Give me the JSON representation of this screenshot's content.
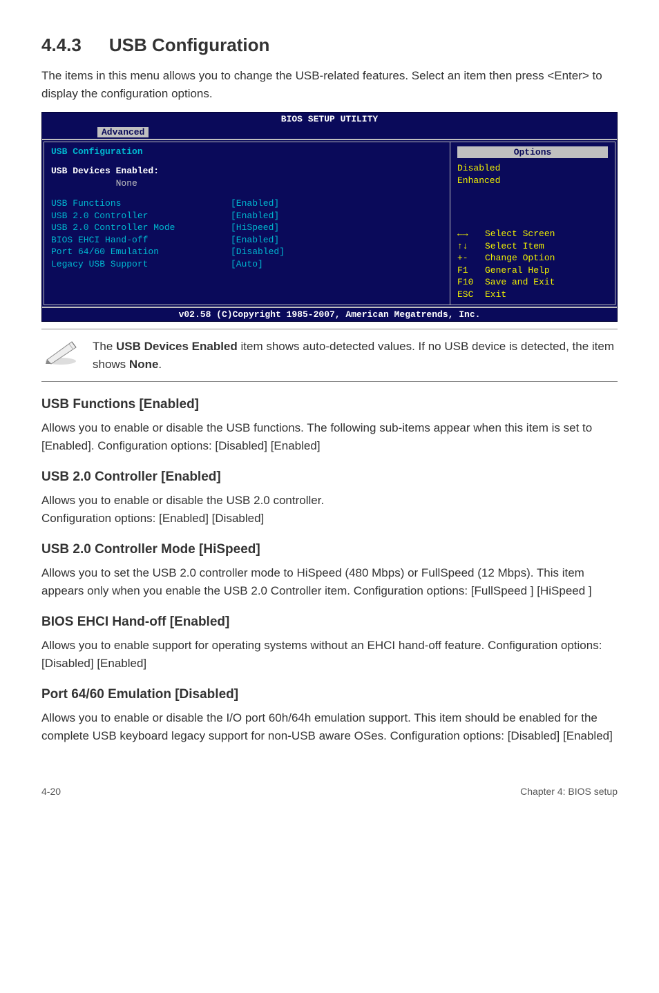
{
  "heading": {
    "number": "4.4.3",
    "title": "USB Configuration"
  },
  "intro": "The items in this menu allows you to change the USB-related features. Select an item then press <Enter> to display the configuration options.",
  "bios": {
    "title": "BIOS SETUP UTILITY",
    "tab": "Advanced",
    "config_label": "USB Configuration",
    "devices_label": "USB Devices Enabled:",
    "devices_value": "None",
    "items": [
      {
        "label": "USB Functions",
        "value": "[Enabled]"
      },
      {
        "label": "USB 2.0 Controller",
        "value": "[Enabled]"
      },
      {
        "label": "USB 2.0 Controller Mode",
        "value": "[HiSpeed]"
      },
      {
        "label": "BIOS EHCI Hand-off",
        "value": "[Enabled]"
      },
      {
        "label": "Port 64/60 Emulation",
        "value": "[Disabled]"
      },
      {
        "label": "Legacy USB Support",
        "value": "[Auto]"
      }
    ],
    "options_title": "Options",
    "options": [
      "Disabled",
      "Enhanced"
    ],
    "nav": [
      {
        "key": "←→",
        "label": "Select Screen"
      },
      {
        "key": "↑↓",
        "label": "Select Item"
      },
      {
        "key": "+-",
        "label": "Change Option"
      },
      {
        "key": "F1",
        "label": "General Help"
      },
      {
        "key": "F10",
        "label": "Save and Exit"
      },
      {
        "key": "ESC",
        "label": "Exit"
      }
    ],
    "copyright": "v02.58 (C)Copyright 1985-2007, American Megatrends, Inc."
  },
  "note": {
    "line1": "The ",
    "bold1": "USB Devices Enabled",
    "line2": " item shows auto-detected values. If no USB device is detected, the item shows ",
    "bold2": "None",
    "line3": "."
  },
  "sections": [
    {
      "title": "USB Functions [Enabled]",
      "body": "Allows you to enable or disable the USB functions. The following sub-items appear when this item is set to [Enabled]. Configuration options: [Disabled] [Enabled]"
    },
    {
      "title": "USB 2.0 Controller [Enabled]",
      "body": "Allows you to enable or disable the USB 2.0 controller.\nConfiguration options: [Enabled] [Disabled]"
    },
    {
      "title": "USB 2.0 Controller Mode [HiSpeed]",
      "body": "Allows you to set the USB 2.0 controller mode to HiSpeed (480 Mbps) or FullSpeed (12 Mbps). This item appears only when you enable the USB 2.0 Controller item. Configuration options: [FullSpeed ] [HiSpeed ]"
    },
    {
      "title": "BIOS EHCI Hand-off [Enabled]",
      "body": "Allows you to enable support for operating systems without an EHCI hand-off feature. Configuration options: [Disabled] [Enabled]"
    },
    {
      "title": "Port 64/60 Emulation [Disabled]",
      "body": "Allows you to enable or disable the I/O port 60h/64h emulation support. This item should be enabled for the complete USB keyboard legacy support for non-USB aware OSes. Configuration options: [Disabled] [Enabled]"
    }
  ],
  "footer": {
    "left": "4-20",
    "right": "Chapter 4: BIOS setup"
  },
  "colors": {
    "bios_bg": "#0a0a5a",
    "bios_text": "#00b8d0",
    "bios_highlight_bg": "#c0c0c0",
    "bios_yellow": "#f0f000",
    "bios_white": "#ffffff"
  }
}
